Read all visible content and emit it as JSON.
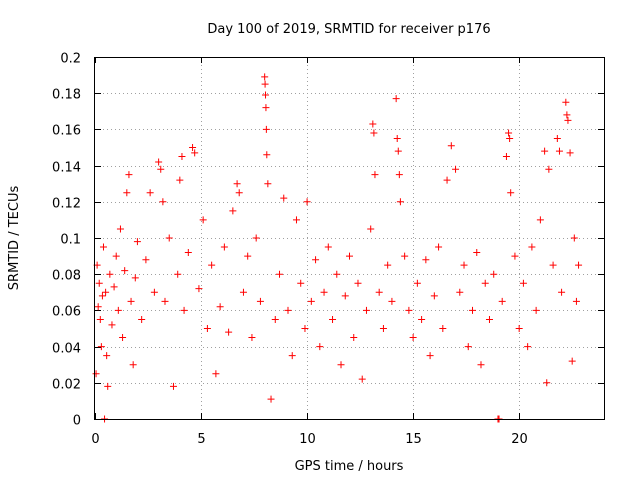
{
  "chart_data": {
    "type": "scatter",
    "title": "Day 100 of 2019, SRMTID for receiver p176",
    "xlabel": "GPS time / hours",
    "ylabel": "SRMTID / TECUs",
    "xlim": [
      0,
      24
    ],
    "ylim": [
      0,
      0.2
    ],
    "x_ticks": [
      0,
      5,
      10,
      15,
      20
    ],
    "x_tick_labels": [
      "0",
      "5",
      "10",
      "15",
      "20"
    ],
    "y_ticks": [
      0,
      0.02,
      0.04,
      0.06,
      0.08,
      0.1,
      0.12,
      0.14,
      0.16,
      0.18,
      0.2
    ],
    "y_tick_labels": [
      "0",
      "0.02",
      "0.04",
      "0.06",
      "0.08",
      "0.1",
      "0.12",
      "0.14",
      "0.16",
      "0.18",
      "0.2"
    ],
    "grid": true,
    "marker": "+",
    "series": [
      {
        "name": "SRMTID",
        "color": "#ff0000",
        "points": [
          [
            0.05,
            0.025
          ],
          [
            0.1,
            0.085
          ],
          [
            0.15,
            0.062
          ],
          [
            0.2,
            0.075
          ],
          [
            0.25,
            0.055
          ],
          [
            0.3,
            0.04
          ],
          [
            0.35,
            0.068
          ],
          [
            0.4,
            0.095
          ],
          [
            0.45,
            0.0
          ],
          [
            0.5,
            0.07
          ],
          [
            0.55,
            0.035
          ],
          [
            0.6,
            0.018
          ],
          [
            0.7,
            0.08
          ],
          [
            0.8,
            0.052
          ],
          [
            0.9,
            0.073
          ],
          [
            1.0,
            0.09
          ],
          [
            1.1,
            0.06
          ],
          [
            1.2,
            0.105
          ],
          [
            1.3,
            0.045
          ],
          [
            1.4,
            0.082
          ],
          [
            1.5,
            0.125
          ],
          [
            1.6,
            0.135
          ],
          [
            1.7,
            0.065
          ],
          [
            1.8,
            0.03
          ],
          [
            1.9,
            0.078
          ],
          [
            2.0,
            0.098
          ],
          [
            2.2,
            0.055
          ],
          [
            2.4,
            0.088
          ],
          [
            2.6,
            0.125
          ],
          [
            2.8,
            0.07
          ],
          [
            3.0,
            0.142
          ],
          [
            3.1,
            0.138
          ],
          [
            3.2,
            0.12
          ],
          [
            3.3,
            0.065
          ],
          [
            3.5,
            0.1
          ],
          [
            3.7,
            0.018
          ],
          [
            3.9,
            0.08
          ],
          [
            4.0,
            0.132
          ],
          [
            4.1,
            0.145
          ],
          [
            4.2,
            0.06
          ],
          [
            4.4,
            0.092
          ],
          [
            4.6,
            0.15
          ],
          [
            4.7,
            0.147
          ],
          [
            4.9,
            0.072
          ],
          [
            5.1,
            0.11
          ],
          [
            5.3,
            0.05
          ],
          [
            5.5,
            0.085
          ],
          [
            5.7,
            0.025
          ],
          [
            5.9,
            0.062
          ],
          [
            6.1,
            0.095
          ],
          [
            6.3,
            0.048
          ],
          [
            6.5,
            0.115
          ],
          [
            6.7,
            0.13
          ],
          [
            6.8,
            0.125
          ],
          [
            7.0,
            0.07
          ],
          [
            7.2,
            0.09
          ],
          [
            7.4,
            0.045
          ],
          [
            7.6,
            0.1
          ],
          [
            7.8,
            0.065
          ],
          [
            8.0,
            0.189
          ],
          [
            8.02,
            0.185
          ],
          [
            8.04,
            0.179
          ],
          [
            8.06,
            0.172
          ],
          [
            8.08,
            0.16
          ],
          [
            8.1,
            0.146
          ],
          [
            8.15,
            0.13
          ],
          [
            8.3,
            0.011
          ],
          [
            8.5,
            0.055
          ],
          [
            8.7,
            0.08
          ],
          [
            8.9,
            0.122
          ],
          [
            9.1,
            0.06
          ],
          [
            9.3,
            0.035
          ],
          [
            9.5,
            0.11
          ],
          [
            9.7,
            0.075
          ],
          [
            9.9,
            0.05
          ],
          [
            10.0,
            0.12
          ],
          [
            10.2,
            0.065
          ],
          [
            10.4,
            0.088
          ],
          [
            10.6,
            0.04
          ],
          [
            10.8,
            0.07
          ],
          [
            11.0,
            0.095
          ],
          [
            11.2,
            0.055
          ],
          [
            11.4,
            0.08
          ],
          [
            11.6,
            0.03
          ],
          [
            11.8,
            0.068
          ],
          [
            12.0,
            0.09
          ],
          [
            12.2,
            0.045
          ],
          [
            12.4,
            0.075
          ],
          [
            12.6,
            0.022
          ],
          [
            12.8,
            0.06
          ],
          [
            13.0,
            0.105
          ],
          [
            13.1,
            0.163
          ],
          [
            13.15,
            0.158
          ],
          [
            13.2,
            0.135
          ],
          [
            13.4,
            0.07
          ],
          [
            13.6,
            0.05
          ],
          [
            13.8,
            0.085
          ],
          [
            14.0,
            0.065
          ],
          [
            14.2,
            0.177
          ],
          [
            14.25,
            0.155
          ],
          [
            14.3,
            0.148
          ],
          [
            14.35,
            0.135
          ],
          [
            14.4,
            0.12
          ],
          [
            14.6,
            0.09
          ],
          [
            14.8,
            0.06
          ],
          [
            15.0,
            0.045
          ],
          [
            15.2,
            0.075
          ],
          [
            15.4,
            0.055
          ],
          [
            15.6,
            0.088
          ],
          [
            15.8,
            0.035
          ],
          [
            16.0,
            0.068
          ],
          [
            16.2,
            0.095
          ],
          [
            16.4,
            0.05
          ],
          [
            16.6,
            0.132
          ],
          [
            16.8,
            0.151
          ],
          [
            17.0,
            0.138
          ],
          [
            17.2,
            0.07
          ],
          [
            17.4,
            0.085
          ],
          [
            17.6,
            0.04
          ],
          [
            17.8,
            0.06
          ],
          [
            18.0,
            0.092
          ],
          [
            18.2,
            0.03
          ],
          [
            18.4,
            0.075
          ],
          [
            18.6,
            0.055
          ],
          [
            18.8,
            0.08
          ],
          [
            19.0,
            0.0
          ],
          [
            19.05,
            0.0
          ],
          [
            19.2,
            0.065
          ],
          [
            19.4,
            0.145
          ],
          [
            19.5,
            0.158
          ],
          [
            19.55,
            0.155
          ],
          [
            19.6,
            0.125
          ],
          [
            19.8,
            0.09
          ],
          [
            20.0,
            0.05
          ],
          [
            20.2,
            0.075
          ],
          [
            20.4,
            0.04
          ],
          [
            20.6,
            0.095
          ],
          [
            20.8,
            0.06
          ],
          [
            21.0,
            0.11
          ],
          [
            21.2,
            0.148
          ],
          [
            21.3,
            0.02
          ],
          [
            21.4,
            0.138
          ],
          [
            21.6,
            0.085
          ],
          [
            21.8,
            0.155
          ],
          [
            21.9,
            0.148
          ],
          [
            22.0,
            0.07
          ],
          [
            22.2,
            0.175
          ],
          [
            22.25,
            0.168
          ],
          [
            22.3,
            0.165
          ],
          [
            22.4,
            0.147
          ],
          [
            22.5,
            0.032
          ],
          [
            22.6,
            0.1
          ],
          [
            22.7,
            0.065
          ],
          [
            22.8,
            0.085
          ]
        ]
      }
    ]
  }
}
